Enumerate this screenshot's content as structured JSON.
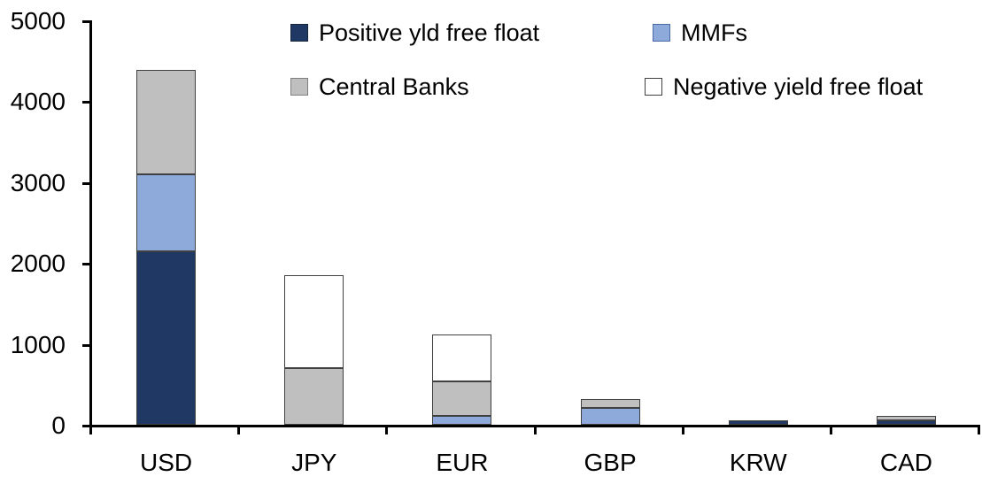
{
  "chart_data": {
    "type": "bar",
    "stacked": true,
    "title": "",
    "xlabel": "",
    "ylabel": "",
    "categories": [
      "USD",
      "JPY",
      "EUR",
      "GBP",
      "KRW",
      "CAD"
    ],
    "series": [
      {
        "name": "Positive yld free float",
        "color": "#1F3864",
        "border_color": "#16243C",
        "values": [
          2150,
          0,
          0,
          0,
          50,
          55
        ]
      },
      {
        "name": "MMFs",
        "color": "#8EAADB",
        "border_color": "#4A6BA5",
        "values": [
          950,
          0,
          110,
          210,
          0,
          0
        ]
      },
      {
        "name": "Central Banks",
        "color": "#BFBFBF",
        "border_color": "#7F7F7F",
        "values": [
          1290,
          700,
          430,
          110,
          0,
          55
        ]
      },
      {
        "name": "Negative yield free float",
        "color": "#FFFFFF",
        "border_color": "#404040",
        "values": [
          0,
          1150,
          580,
          0,
          0,
          0
        ]
      }
    ],
    "totals": [
      4390,
      1850,
      1120,
      320,
      50,
      110
    ],
    "ylim": [
      0,
      5000
    ],
    "yticks": [
      0,
      1000,
      2000,
      3000,
      4000,
      5000
    ],
    "grid": false,
    "legend_position": "top",
    "legend_rows": [
      [
        "Positive yld free float",
        "MMFs"
      ],
      [
        "Central Banks",
        "Negative yield free float"
      ]
    ],
    "axis_color": "#000000",
    "text_color": "#000000"
  }
}
